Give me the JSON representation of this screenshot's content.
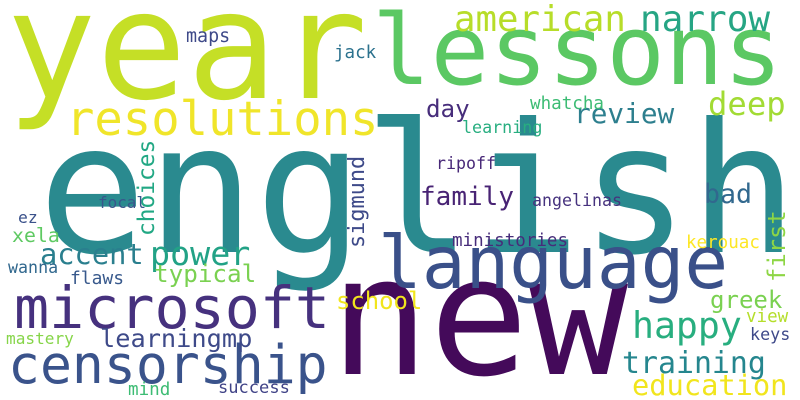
{
  "words": [
    {
      "text": "english",
      "color": "#2a8a8f"
    },
    {
      "text": "year",
      "color": "#c5df26"
    },
    {
      "text": "new",
      "color": "#440a5a"
    },
    {
      "text": "lessons",
      "color": "#5bc863"
    },
    {
      "text": "language",
      "color": "#3a5089"
    },
    {
      "text": "microsoft",
      "color": "#46317e"
    },
    {
      "text": "censorship",
      "color": "#3a538b"
    },
    {
      "text": "resolutions",
      "color": "#f0e52a"
    },
    {
      "text": "review",
      "color": "#2d7f8e"
    },
    {
      "text": "american",
      "color": "#b7dd29"
    },
    {
      "text": "narrow",
      "color": "#26a584"
    },
    {
      "text": "deep",
      "color": "#a2db34"
    },
    {
      "text": "power",
      "color": "#22a286"
    },
    {
      "text": "accent",
      "color": "#2a7f8e"
    },
    {
      "text": "happy",
      "color": "#28ae7f"
    },
    {
      "text": "training",
      "color": "#25868e"
    },
    {
      "text": "learningmp",
      "color": "#3e4a89"
    },
    {
      "text": "family",
      "color": "#482374"
    },
    {
      "text": "choices",
      "color": "#22a884"
    },
    {
      "text": "sigmund",
      "color": "#3e4a89"
    },
    {
      "text": "typical",
      "color": "#7ad151"
    },
    {
      "text": "school",
      "color": "#f1e51d"
    },
    {
      "text": "greek",
      "color": "#7ad151"
    },
    {
      "text": "education",
      "color": "#f1e51d"
    },
    {
      "text": "first",
      "color": "#8ed645"
    },
    {
      "text": "bad",
      "color": "#31688e"
    },
    {
      "text": "day",
      "color": "#472d7b"
    },
    {
      "text": "xela",
      "color": "#5ec962"
    },
    {
      "text": "flaws",
      "color": "#38598c"
    },
    {
      "text": "whatcha",
      "color": "#3dbc74"
    },
    {
      "text": "learning",
      "color": "#28ae80"
    },
    {
      "text": "ripoff",
      "color": "#482878"
    },
    {
      "text": "angelinas",
      "color": "#46327e"
    },
    {
      "text": "ministories",
      "color": "#472c7a"
    },
    {
      "text": "focal",
      "color": "#39568c"
    },
    {
      "text": "kerouac",
      "color": "#fde725"
    },
    {
      "text": "maps",
      "color": "#3e4989"
    },
    {
      "text": "jack",
      "color": "#2c728e"
    },
    {
      "text": "ez",
      "color": "#3b528b"
    },
    {
      "text": "wanna",
      "color": "#31688e"
    },
    {
      "text": "mastery",
      "color": "#86d549"
    },
    {
      "text": "success",
      "color": "#404387"
    },
    {
      "text": "mind",
      "color": "#3dbc74"
    },
    {
      "text": "keys",
      "color": "#3e4989"
    },
    {
      "text": "view",
      "color": "#b5de2b"
    }
  ]
}
